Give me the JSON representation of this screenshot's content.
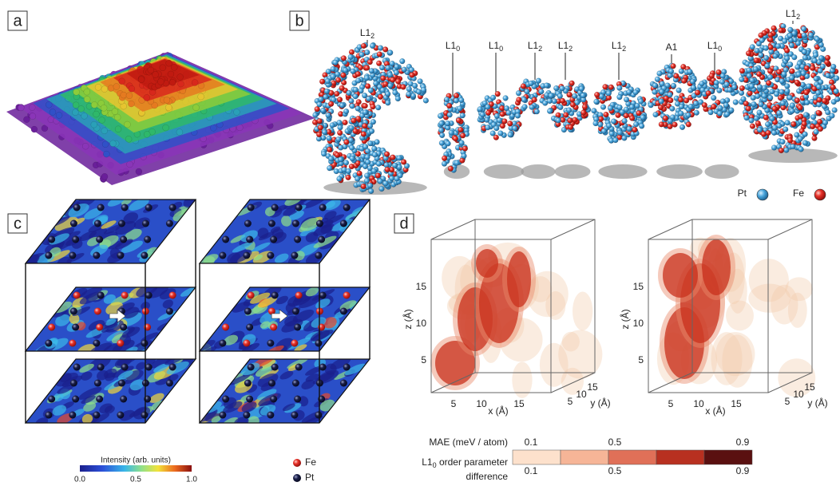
{
  "panels": {
    "a": {
      "label": "a"
    },
    "b": {
      "label": "b",
      "phases": [
        {
          "name": "L1",
          "sub": "2"
        },
        {
          "name": "L1",
          "sub": "0"
        },
        {
          "name": "L1",
          "sub": "0"
        },
        {
          "name": "L1",
          "sub": "2"
        },
        {
          "name": "L1",
          "sub": "2"
        },
        {
          "name": "L1",
          "sub": "2"
        },
        {
          "name": "A1"
        },
        {
          "name": "L1",
          "sub": "0"
        },
        {
          "name": "L1",
          "sub": "2"
        }
      ],
      "legend": [
        "Pt",
        "Fe"
      ]
    },
    "c": {
      "label": "c",
      "colorbar": {
        "title": "Intensity (arb. units)",
        "ticks": [
          "0.0",
          "0.5",
          "1.0"
        ]
      },
      "legend": [
        "Fe",
        "Pt"
      ]
    },
    "d": {
      "label": "d",
      "plots": [
        {
          "z_label": "z (Å)",
          "z_ticks": [
            "5",
            "10",
            "15"
          ],
          "x_label": "x (Å)",
          "x_ticks": [
            "5",
            "10",
            "15"
          ],
          "y_label": "y (Å)",
          "y_ticks": [
            "5",
            "10",
            "15"
          ]
        },
        {
          "z_label": "z (Å)",
          "z_ticks": [
            "5",
            "10",
            "15"
          ],
          "x_label": "x (Å)",
          "x_ticks": [
            "5",
            "10",
            "15"
          ],
          "y_label": "y (Å)",
          "y_ticks": [
            "5",
            "10",
            "15"
          ]
        }
      ],
      "colorbar": {
        "mae_title": "MAE  (meV / atom)",
        "mae_ticks": [
          "0.1",
          "0.5",
          "0.9"
        ],
        "order_title_name": "L1",
        "order_title_sub": "0",
        "order_title_rest": " order parameter",
        "order_title_line2": "difference",
        "order_ticks": [
          "0.1",
          "0.5",
          "0.9"
        ]
      }
    }
  }
}
